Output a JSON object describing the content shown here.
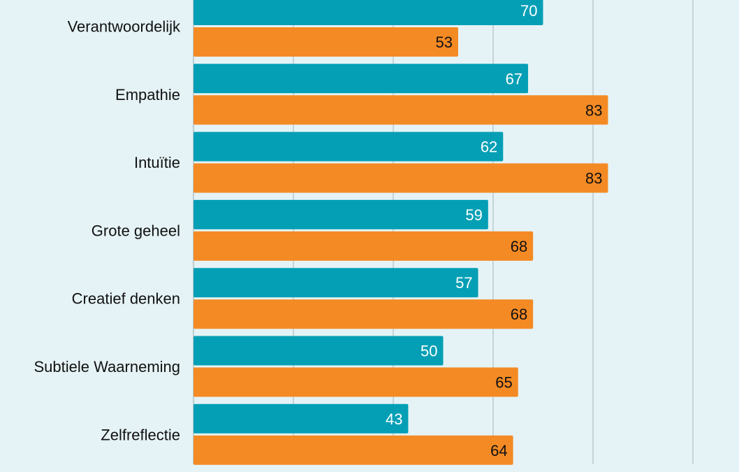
{
  "chart_data": {
    "type": "bar",
    "orientation": "horizontal",
    "categories": [
      "Verantwoordelijk",
      "Empathie",
      "Intuïtie",
      "Grote geheel",
      "Creatief denken",
      "Subtiele Waarneming",
      "Zelfreflectie"
    ],
    "series": [
      {
        "values": [
          70,
          67,
          62,
          59,
          57,
          50,
          43
        ],
        "color": "#059fb5"
      },
      {
        "values": [
          53,
          83,
          83,
          68,
          68,
          65,
          64
        ],
        "color": "#f48a24"
      }
    ],
    "xlim": [
      0,
      100
    ],
    "grid": true,
    "gridlines": [
      20,
      40,
      60,
      80,
      100
    ],
    "data_labels": true
  }
}
